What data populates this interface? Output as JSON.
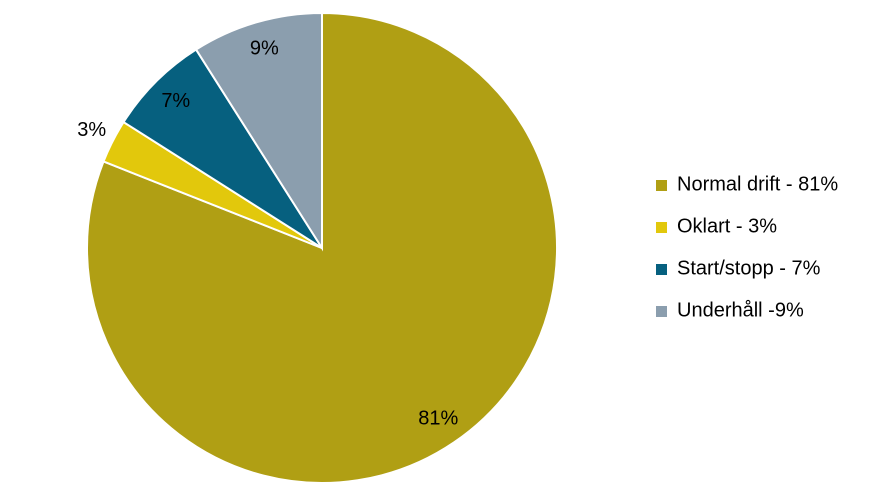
{
  "chart_data": {
    "type": "pie",
    "categories": [
      "Normal drift - 81%",
      "Oklart - 3%",
      "Start/stopp - 7%",
      "Underhåll -9%"
    ],
    "values": [
      81,
      3,
      7,
      9
    ],
    "value_labels": [
      "81%",
      "3%",
      "7%",
      "9%"
    ],
    "colors": [
      "#b09f14",
      "#e2c80c",
      "#06607f",
      "#8b9eae"
    ],
    "legend": "right"
  }
}
